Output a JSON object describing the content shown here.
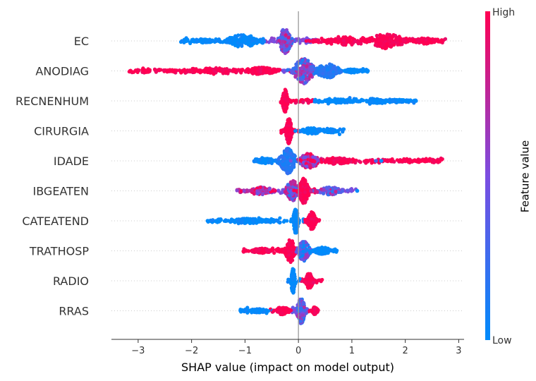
{
  "chart_data": {
    "type": "scatter",
    "subtype": "shap-beeswarm",
    "xlabel": "SHAP value (impact on model output)",
    "xlim": [
      -3.5,
      3.1
    ],
    "xticks": [
      -3,
      -2,
      -1,
      0,
      1,
      2,
      3
    ],
    "colorbar": {
      "title": "Feature value",
      "high": "High",
      "low": "Low"
    },
    "colors": {
      "low": "#008bfb",
      "mid": "#7b4de1",
      "high": "#ff0052",
      "zero_line": "#999999",
      "axis": "#333333"
    },
    "features": [
      {
        "name": "EC",
        "range": [
          -2.2,
          2.75
        ],
        "clusters": [
          {
            "x": -1.05,
            "w": 0.35,
            "h": 0.5,
            "c": 0.0
          },
          {
            "x": -0.25,
            "w": 0.12,
            "h": 1.0,
            "c": 0.5
          },
          {
            "x": 0.9,
            "w": 0.6,
            "h": 0.35,
            "c": 1.0
          },
          {
            "x": 1.65,
            "w": 0.35,
            "h": 0.6,
            "c": 1.0
          },
          {
            "x": -1.8,
            "w": 0.3,
            "h": 0.15,
            "c": 0.0
          },
          {
            "x": 2.4,
            "w": 0.25,
            "h": 0.25,
            "c": 1.0
          }
        ],
        "outliers": []
      },
      {
        "name": "ANODIAG",
        "range": [
          -3.2,
          1.3
        ],
        "clusters": [
          {
            "x": -1.6,
            "w": 0.9,
            "h": 0.25,
            "c": 1.0
          },
          {
            "x": -0.7,
            "w": 0.3,
            "h": 0.3,
            "c": 1.0
          },
          {
            "x": 0.1,
            "w": 0.2,
            "h": 1.0,
            "c": 0.45
          },
          {
            "x": 0.55,
            "w": 0.25,
            "h": 0.55,
            "c": 0.15
          },
          {
            "x": 1.0,
            "w": 0.15,
            "h": 0.15,
            "c": 0.0
          }
        ],
        "outliers": [
          {
            "x": -3.15,
            "c": 1.0
          },
          {
            "x": -3.05,
            "c": 1.0
          },
          {
            "x": -2.9,
            "c": 1.0
          },
          {
            "x": 1.3,
            "c": 0.0
          }
        ]
      },
      {
        "name": "RECNENHUM",
        "range": [
          -0.35,
          2.2
        ],
        "clusters": [
          {
            "x": -0.25,
            "w": 0.05,
            "h": 0.9,
            "c": 1.0
          },
          {
            "x": 0.8,
            "w": 0.3,
            "h": 0.15,
            "c": 0.0
          },
          {
            "x": 1.45,
            "w": 0.3,
            "h": 0.2,
            "c": 0.0
          },
          {
            "x": 1.85,
            "w": 0.15,
            "h": 0.12,
            "c": 0.0
          }
        ],
        "outliers": [
          {
            "x": 2.05,
            "c": 0.0
          },
          {
            "x": 2.2,
            "c": 0.0
          }
        ]
      },
      {
        "name": "CIRURGIA",
        "range": [
          -0.35,
          0.85
        ],
        "clusters": [
          {
            "x": -0.18,
            "w": 0.06,
            "h": 1.0,
            "c": 1.0
          },
          {
            "x": 0.25,
            "w": 0.2,
            "h": 0.25,
            "c": 0.0
          },
          {
            "x": 0.6,
            "w": 0.15,
            "h": 0.15,
            "c": 0.0
          }
        ],
        "outliers": []
      },
      {
        "name": "IDADE",
        "range": [
          -0.85,
          2.7
        ],
        "clusters": [
          {
            "x": -0.6,
            "w": 0.2,
            "h": 0.2,
            "c": 0.0
          },
          {
            "x": -0.2,
            "w": 0.15,
            "h": 1.0,
            "c": 0.15
          },
          {
            "x": 0.2,
            "w": 0.2,
            "h": 0.6,
            "c": 0.75
          },
          {
            "x": 0.7,
            "w": 0.35,
            "h": 0.25,
            "c": 1.0
          }
        ],
        "outliers": [
          {
            "x": 1.3,
            "c": 1.0
          },
          {
            "x": 1.45,
            "c": 0.3
          },
          {
            "x": 1.55,
            "c": 0.0
          },
          {
            "x": 1.65,
            "c": 1.0
          },
          {
            "x": 1.95,
            "c": 1.0
          },
          {
            "x": 2.05,
            "c": 1.0
          },
          {
            "x": 2.15,
            "c": 1.0
          },
          {
            "x": 2.3,
            "c": 1.0
          },
          {
            "x": 2.45,
            "c": 1.0
          },
          {
            "x": 2.6,
            "c": 1.0
          }
        ]
      },
      {
        "name": "IBGEATEN",
        "range": [
          -1.15,
          1.1
        ],
        "clusters": [
          {
            "x": -0.7,
            "w": 0.3,
            "h": 0.3,
            "c": 0.75
          },
          {
            "x": -0.1,
            "w": 0.15,
            "h": 0.8,
            "c": 0.5
          },
          {
            "x": 0.1,
            "w": 0.1,
            "h": 1.0,
            "c": 1.0
          },
          {
            "x": 0.6,
            "w": 0.25,
            "h": 0.3,
            "c": 0.5
          }
        ],
        "outliers": [
          {
            "x": 1.1,
            "c": 0.0
          }
        ]
      },
      {
        "name": "CATEATEND",
        "range": [
          -1.7,
          0.4
        ],
        "clusters": [
          {
            "x": -0.9,
            "w": 0.4,
            "h": 0.2,
            "c": 0.0
          },
          {
            "x": -0.05,
            "w": 0.05,
            "h": 1.0,
            "c": 0.0
          },
          {
            "x": 0.25,
            "w": 0.08,
            "h": 0.7,
            "c": 1.0
          }
        ],
        "outliers": [
          {
            "x": -1.7,
            "c": 0.0
          }
        ]
      },
      {
        "name": "TRATHOSP",
        "range": [
          -1.05,
          0.75
        ],
        "clusters": [
          {
            "x": -0.7,
            "w": 0.2,
            "h": 0.2,
            "c": 1.0
          },
          {
            "x": -0.15,
            "w": 0.1,
            "h": 0.9,
            "c": 1.0
          },
          {
            "x": 0.1,
            "w": 0.12,
            "h": 0.8,
            "c": 0.3
          },
          {
            "x": 0.45,
            "w": 0.15,
            "h": 0.3,
            "c": 0.0
          }
        ],
        "outliers": []
      },
      {
        "name": "RADIO",
        "range": [
          -0.2,
          0.45
        ],
        "clusters": [
          {
            "x": -0.1,
            "w": 0.04,
            "h": 1.0,
            "c": 0.0
          },
          {
            "x": 0.2,
            "w": 0.08,
            "h": 0.6,
            "c": 1.0
          }
        ],
        "outliers": []
      },
      {
        "name": "RRAS",
        "range": [
          -1.1,
          0.4
        ],
        "clusters": [
          {
            "x": -0.75,
            "w": 0.2,
            "h": 0.15,
            "c": 0.0
          },
          {
            "x": -0.3,
            "w": 0.15,
            "h": 0.3,
            "c": 1.0
          },
          {
            "x": 0.05,
            "w": 0.08,
            "h": 1.0,
            "c": 0.4
          },
          {
            "x": 0.3,
            "w": 0.06,
            "h": 0.3,
            "c": 1.0
          }
        ],
        "outliers": []
      }
    ]
  }
}
